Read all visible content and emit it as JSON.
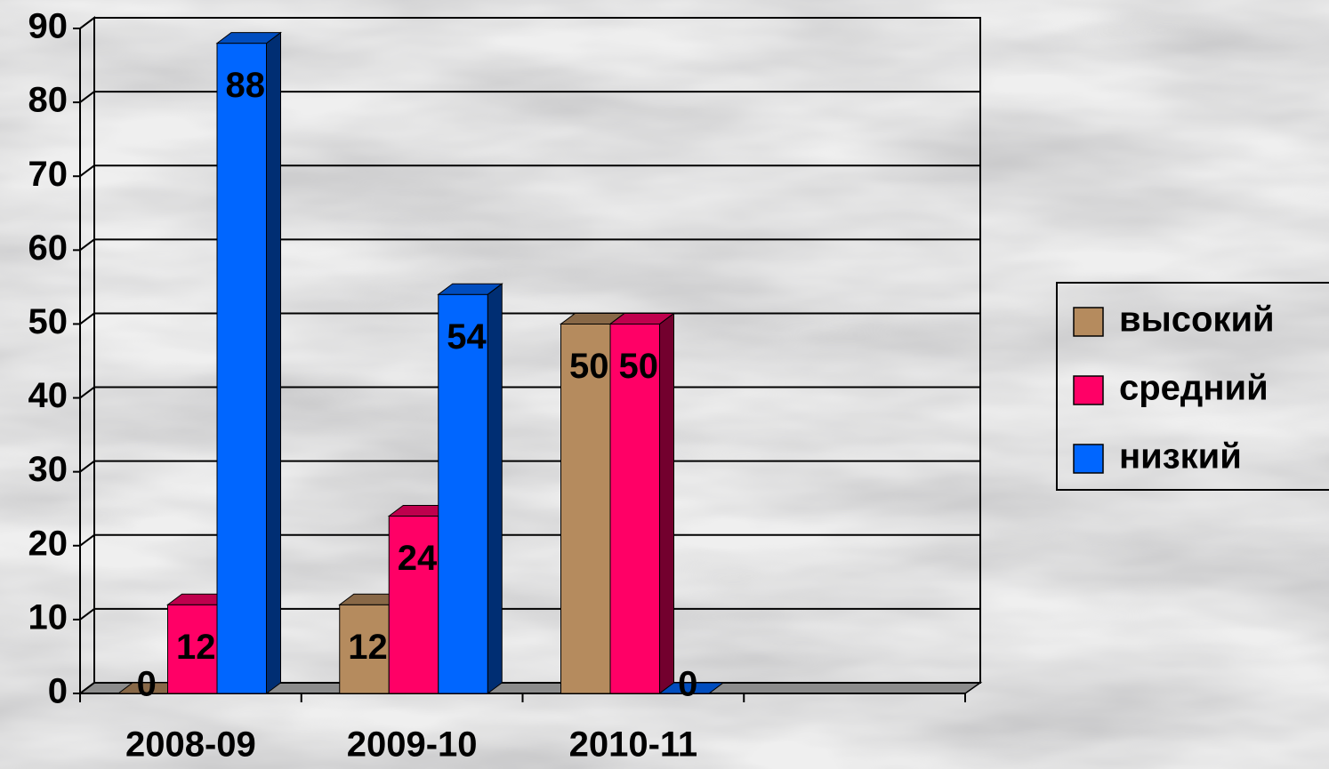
{
  "chart_data": {
    "type": "bar3d",
    "categories": [
      "2008-09",
      "2009-10",
      "2010-11",
      null
    ],
    "series": [
      {
        "name": "высокий",
        "color": "#b58b5e",
        "values": [
          0,
          12,
          50,
          null
        ]
      },
      {
        "name": "средний",
        "color": "#ff0066",
        "values": [
          12,
          24,
          50,
          null
        ]
      },
      {
        "name": "низкий",
        "color": "#0066ff",
        "values": [
          88,
          54,
          0,
          null
        ]
      }
    ],
    "ylim": [
      0,
      90
    ],
    "yticks": [
      0,
      10,
      20,
      30,
      40,
      50,
      60,
      70,
      80,
      90
    ],
    "grid": true,
    "legend": "right"
  }
}
